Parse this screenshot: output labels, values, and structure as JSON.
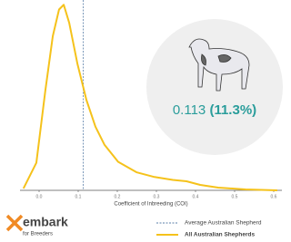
{
  "chart_data": {
    "type": "line",
    "x_label": "Coefficient of Inbreeding (COI)",
    "xlim": [
      -0.05,
      0.62
    ],
    "ylim": [
      0,
      20
    ],
    "xticks": [
      {
        "value": 0,
        "label": "0.0"
      },
      0.1,
      0.2,
      0.3,
      0.4,
      0.5,
      0.6
    ],
    "series": [
      {
        "name": "All Australian Shepherds",
        "color": "#f5c21b",
        "x": [
          -0.04,
          -0.007,
          0.016,
          0.035,
          0.051,
          0.063,
          0.077,
          0.098,
          0.121,
          0.144,
          0.167,
          0.202,
          0.249,
          0.295,
          0.342,
          0.377,
          0.412,
          0.458,
          0.528,
          0.609
        ],
        "values": [
          0.2,
          2.9,
          10.5,
          16.2,
          19,
          19.5,
          17.6,
          13.3,
          9.5,
          6.7,
          4.8,
          3.0,
          1.9,
          1.4,
          1.1,
          0.95,
          0.57,
          0.29,
          0.1,
          0
        ]
      }
    ],
    "reference_line": {
      "name": "Average Australian Shepherd",
      "color": "#5b7fa8",
      "value": 0.113
    },
    "annotation": {
      "value": 0.113,
      "percent_label": "(11.3%)",
      "color": "#2a9d9b"
    },
    "logo": {
      "brand": "embark",
      "subtitle": "for Breeders"
    }
  }
}
